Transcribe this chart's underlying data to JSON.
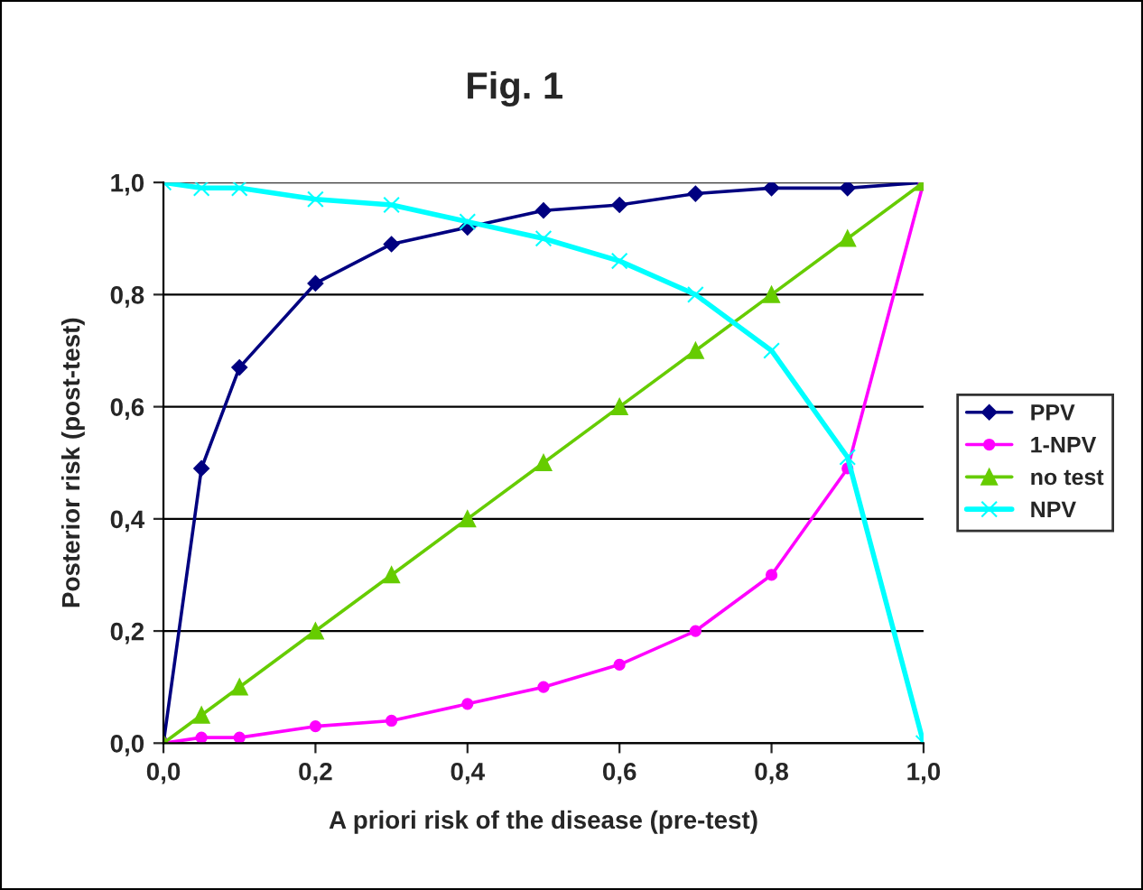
{
  "chart_data": {
    "type": "line",
    "title": "Fig. 1",
    "xlabel": "A priori risk of the disease (pre-test)",
    "ylabel": "Posterior risk (post-test)",
    "x": [
      0,
      0.05,
      0.1,
      0.2,
      0.3,
      0.4,
      0.5,
      0.6,
      0.7,
      0.8,
      0.9,
      1.0
    ],
    "series": [
      {
        "name": "PPV",
        "color": "#000080",
        "marker": "diamond",
        "values": [
          0,
          0.49,
          0.67,
          0.82,
          0.89,
          0.92,
          0.95,
          0.96,
          0.98,
          0.99,
          0.99,
          1.0
        ]
      },
      {
        "name": "1-NPV",
        "color": "#ff00ff",
        "marker": "circle",
        "values": [
          0,
          0.01,
          0.01,
          0.03,
          0.04,
          0.07,
          0.1,
          0.14,
          0.2,
          0.3,
          0.49,
          1.0
        ]
      },
      {
        "name": "no test",
        "color": "#66cc00",
        "marker": "triangle",
        "values": [
          0,
          0.05,
          0.1,
          0.2,
          0.3,
          0.4,
          0.5,
          0.6,
          0.7,
          0.8,
          0.9,
          1.0
        ]
      },
      {
        "name": "NPV",
        "color": "#00ffff",
        "marker": "cross",
        "values": [
          1.0,
          0.99,
          0.99,
          0.97,
          0.96,
          0.93,
          0.9,
          0.86,
          0.8,
          0.7,
          0.51,
          0
        ]
      }
    ],
    "xlim": [
      0,
      1
    ],
    "ylim": [
      0,
      1
    ],
    "xticks": [
      {
        "value": 0,
        "label": "0,0"
      },
      {
        "value": 0.2,
        "label": "0,2"
      },
      {
        "value": 0.4,
        "label": "0,4"
      },
      {
        "value": 0.6,
        "label": "0,6"
      },
      {
        "value": 0.8,
        "label": "0,8"
      },
      {
        "value": 1,
        "label": "1,0"
      }
    ],
    "yticks": [
      {
        "value": 0,
        "label": "0,0"
      },
      {
        "value": 0.2,
        "label": "0,2"
      },
      {
        "value": 0.4,
        "label": "0,4"
      },
      {
        "value": 0.6,
        "label": "0,6"
      },
      {
        "value": 0.8,
        "label": "0,8"
      },
      {
        "value": 1,
        "label": "1,0"
      }
    ],
    "grid": "y",
    "legend": "right",
    "line_style": "solid"
  }
}
